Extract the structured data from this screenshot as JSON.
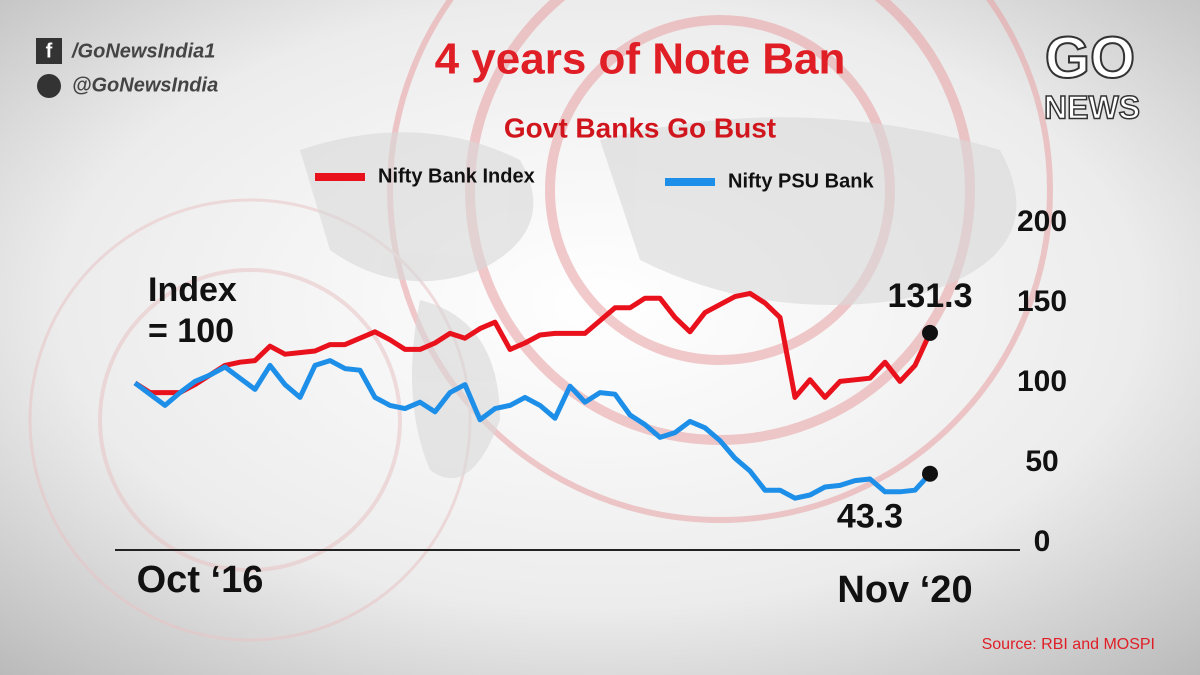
{
  "social": {
    "facebook": "/GoNewsIndia1",
    "twitter": "@GoNewsIndia"
  },
  "logo": {
    "top": "GO",
    "bottom": "NEWS"
  },
  "source": "Source: RBI and MOSPI",
  "chart_data": {
    "type": "line",
    "title": "4 years of Note Ban",
    "subtitle": "Govt Banks Go Bust",
    "annotations": [
      "Index",
      "= 100"
    ],
    "categories": [
      "Oct ‘16",
      null,
      null,
      null,
      null,
      null,
      null,
      null,
      null,
      null,
      null,
      null,
      null,
      null,
      null,
      null,
      null,
      null,
      null,
      null,
      null,
      null,
      null,
      null,
      null,
      null,
      null,
      null,
      null,
      null,
      null,
      null,
      null,
      null,
      null,
      null,
      null,
      null,
      null,
      null,
      null,
      null,
      null,
      null,
      null,
      null,
      null,
      null,
      null,
      null,
      null,
      null,
      null,
      "Nov ‘20"
    ],
    "series": [
      {
        "name": "Nifty Bank Index",
        "color": "#e8111c",
        "values": [
          100,
          94,
          94,
          94,
          99,
          105,
          111,
          113,
          114,
          123,
          118,
          119,
          120,
          124,
          124,
          128,
          132,
          127,
          121,
          121,
          125,
          131,
          128,
          134,
          138,
          121,
          125,
          130,
          131,
          131,
          131,
          139,
          147,
          147,
          153,
          153,
          141,
          132,
          144,
          149,
          154,
          156,
          150,
          141,
          91,
          102,
          91,
          101,
          102,
          103,
          113,
          101,
          111,
          131.3
        ]
      },
      {
        "name": "Nifty PSU Bank",
        "color": "#1e8fe8",
        "values": [
          100,
          93,
          86,
          94,
          101,
          105,
          110,
          103,
          96,
          111,
          99,
          91,
          111,
          114,
          109,
          108,
          91,
          86,
          84,
          88,
          82,
          94,
          99,
          77,
          84,
          86,
          91,
          86,
          78,
          98,
          88,
          94,
          93,
          80,
          74,
          66,
          69,
          76,
          72,
          64,
          53,
          45,
          33,
          33,
          28,
          30,
          35,
          36,
          39,
          40,
          32,
          32,
          33,
          43.3
        ]
      }
    ],
    "ylim": [
      0,
      200
    ],
    "yticks": [
      0,
      50,
      100,
      150,
      200
    ],
    "grid": false
  }
}
